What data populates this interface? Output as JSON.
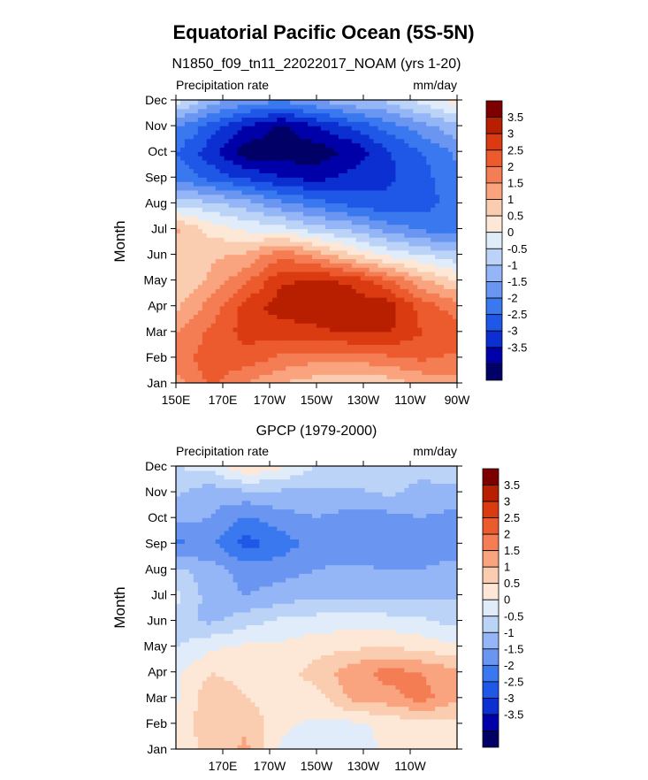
{
  "figure": {
    "title": "Equatorial Pacific Ocean (5S-5N)"
  },
  "chart_data": [
    {
      "type": "heatmap",
      "title": "N1850_f09_tn11_22022017_NOAM (yrs 1-20)",
      "left_label": "Precipitation rate",
      "units": "mm/day",
      "ylabel": "Month",
      "xlabel": "",
      "x_ticks": [
        "150E",
        "170E",
        "170W",
        "150W",
        "130W",
        "110W",
        "90W"
      ],
      "y_ticks": [
        "Jan",
        "Feb",
        "Mar",
        "Apr",
        "May",
        "Jun",
        "Jul",
        "Aug",
        "Sep",
        "Oct",
        "Nov",
        "Dec"
      ],
      "xlim": [
        150,
        270
      ],
      "ylim": [
        1,
        12
      ],
      "grid_x": [
        150,
        165,
        180,
        195,
        210,
        225,
        240,
        255,
        270
      ],
      "z": [
        [
          1.8,
          2.6,
          2.0,
          1.5,
          1.2,
          1.0,
          1.2,
          1.6,
          1.8
        ],
        [
          2.2,
          2.8,
          2.8,
          2.4,
          2.2,
          2.2,
          2.4,
          2.6,
          2.4
        ],
        [
          2.0,
          2.6,
          3.2,
          3.2,
          3.4,
          3.6,
          3.6,
          3.0,
          2.8
        ],
        [
          1.4,
          2.2,
          3.2,
          3.8,
          3.8,
          3.8,
          3.8,
          2.8,
          2.2
        ],
        [
          1.0,
          1.6,
          2.4,
          3.4,
          3.6,
          3.4,
          2.6,
          1.6,
          1.0
        ],
        [
          1.0,
          1.4,
          1.6,
          2.4,
          1.8,
          1.0,
          0.4,
          0.0,
          -0.4
        ],
        [
          1.6,
          0.8,
          0.4,
          0.2,
          -0.3,
          -0.6,
          -1.2,
          -1.6,
          -1.8
        ],
        [
          -0.2,
          -0.4,
          -0.8,
          -1.4,
          -1.8,
          -2.2,
          -2.4,
          -2.2,
          -1.8
        ],
        [
          -1.6,
          -2.2,
          -2.6,
          -3.0,
          -3.2,
          -2.8,
          -2.6,
          -2.2,
          -1.6
        ],
        [
          -2.0,
          -2.8,
          -3.8,
          -3.8,
          -3.8,
          -3.4,
          -2.6,
          -2.0,
          -1.4
        ],
        [
          -1.4,
          -2.2,
          -3.0,
          -3.6,
          -3.0,
          -2.4,
          -1.8,
          -1.2,
          -0.6
        ],
        [
          0.2,
          -0.8,
          -1.2,
          -1.4,
          -1.0,
          -0.6,
          -0.4,
          0.2,
          0.8
        ]
      ],
      "colorbar": {
        "labels": [
          "3.5",
          "3",
          "2.5",
          "2",
          "1.5",
          "1",
          "0.5",
          "0",
          "-0.5",
          "-1",
          "-1.5",
          "-2",
          "-2.5",
          "-3",
          "-3.5"
        ]
      }
    },
    {
      "type": "heatmap",
      "title": "GPCP (1979-2000)",
      "left_label": "Precipitation rate",
      "units": "mm/day",
      "ylabel": "Month",
      "xlabel": "",
      "x_ticks": [
        "170E",
        "170W",
        "150W",
        "130W",
        "110W"
      ],
      "y_ticks": [
        "Jan",
        "Feb",
        "Mar",
        "Apr",
        "May",
        "Jun",
        "Jul",
        "Aug",
        "Sep",
        "Oct",
        "Nov",
        "Dec"
      ],
      "xlim": [
        150,
        270
      ],
      "ylim": [
        1,
        12
      ],
      "grid_x": [
        150,
        165,
        180,
        195,
        210,
        225,
        240,
        255,
        270
      ],
      "z": [
        [
          0.6,
          1.2,
          1.6,
          0.4,
          0.2,
          0.2,
          0.6,
          0.8,
          0.8
        ],
        [
          0.6,
          1.4,
          1.4,
          0.6,
          0.4,
          0.4,
          0.6,
          0.8,
          0.8
        ],
        [
          0.4,
          1.4,
          1.0,
          0.8,
          0.8,
          1.6,
          1.8,
          2.2,
          1.6
        ],
        [
          0.4,
          1.0,
          0.8,
          0.8,
          1.2,
          1.8,
          2.2,
          2.0,
          1.6
        ],
        [
          0.0,
          0.4,
          0.6,
          0.6,
          0.8,
          0.9,
          1.0,
          0.8,
          0.6
        ],
        [
          -0.4,
          -0.6,
          -0.2,
          0.1,
          0.2,
          0.3,
          0.2,
          0.1,
          -0.2
        ],
        [
          0.2,
          -0.8,
          -1.0,
          -0.8,
          -0.6,
          -0.6,
          -0.6,
          -0.6,
          -0.6
        ],
        [
          -0.4,
          -0.8,
          -1.2,
          -1.2,
          -1.0,
          -0.9,
          -1.0,
          -1.0,
          -0.8
        ],
        [
          -1.6,
          -1.4,
          -2.2,
          -1.8,
          -1.2,
          -1.4,
          -1.4,
          -1.2,
          -1.4
        ],
        [
          -0.8,
          -1.0,
          -1.6,
          -1.2,
          -1.0,
          -1.2,
          -1.2,
          -1.0,
          -1.2
        ],
        [
          -0.4,
          -0.8,
          -0.6,
          -0.6,
          -0.6,
          -0.6,
          -0.4,
          -0.6,
          -0.6
        ],
        [
          0.0,
          0.2,
          1.0,
          0.6,
          0.0,
          -0.2,
          -0.4,
          -0.4,
          -0.2
        ]
      ],
      "colorbar": {
        "labels": [
          "3.5",
          "3",
          "2.5",
          "2",
          "1.5",
          "1",
          "0.5",
          "0",
          "-0.5",
          "-1",
          "-1.5",
          "-2",
          "-2.5",
          "-3",
          "-3.5"
        ]
      }
    }
  ],
  "colorbar_colors": [
    "#000066",
    "#0000a8",
    "#0b2fd0",
    "#1f58e6",
    "#3a78f0",
    "#6a96f2",
    "#94b6f6",
    "#bcd3f8",
    "#e0ecfa",
    "#fde8d8",
    "#fbcdb0",
    "#f9a47e",
    "#f47d54",
    "#ec5b2e",
    "#db3b10",
    "#b81e00",
    "#7c0000"
  ]
}
